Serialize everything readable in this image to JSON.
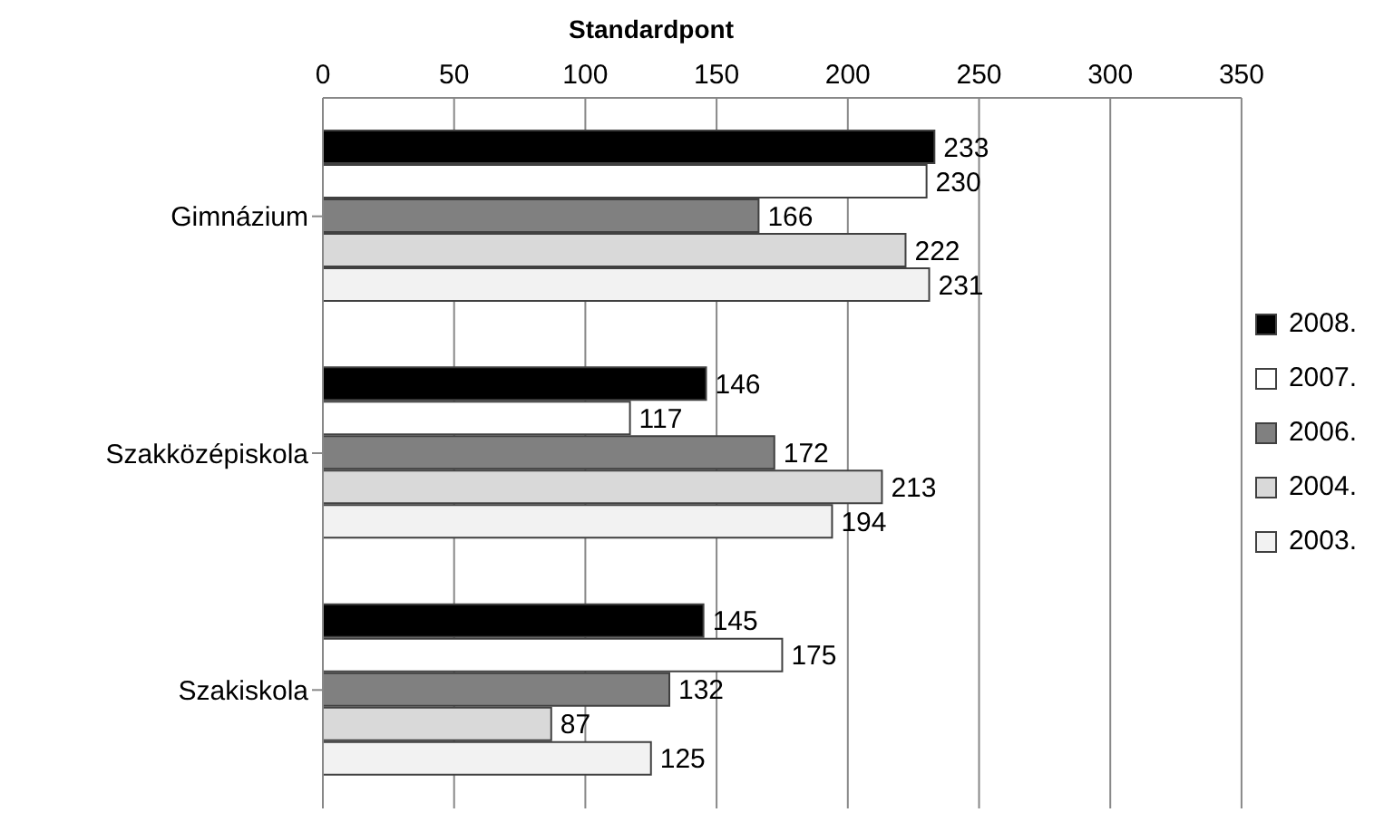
{
  "chart_data": {
    "type": "bar",
    "orientation": "horizontal",
    "xlabel": "Standardpont",
    "categories": [
      "Gimnázium",
      "Szakközépiskola",
      "Szakiskola"
    ],
    "series": [
      {
        "name": "2008.",
        "color": "#000000",
        "values": [
          233,
          146,
          145
        ]
      },
      {
        "name": "2007.",
        "color": "#ffffff",
        "values": [
          230,
          117,
          175
        ]
      },
      {
        "name": "2006.",
        "color": "#808080",
        "values": [
          166,
          172,
          132
        ]
      },
      {
        "name": "2004.",
        "color": "#d9d9d9",
        "values": [
          222,
          213,
          87
        ]
      },
      {
        "name": "2003.",
        "color": "#f2f2f2",
        "values": [
          231,
          194,
          125
        ]
      }
    ],
    "xlim": [
      0,
      350
    ],
    "xticks": [
      0,
      50,
      100,
      150,
      200,
      250,
      300,
      350
    ],
    "grid": "x",
    "legend": "right",
    "data_labels": true
  }
}
